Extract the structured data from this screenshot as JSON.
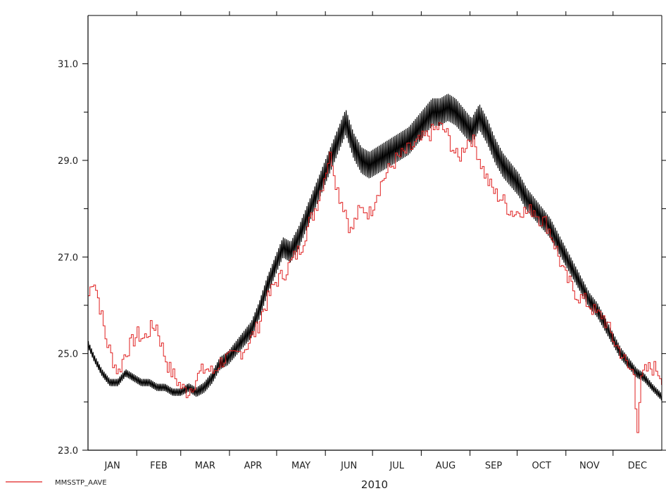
{
  "chart_data": {
    "type": "line",
    "title": "",
    "xlabel": "2010",
    "ylabel": "",
    "ylim": [
      23.0,
      32.0
    ],
    "y_tick_labels": [
      "23.0",
      "25.0",
      "27.0",
      "29.0",
      "31.0"
    ],
    "y_tick_values": [
      23,
      25,
      27,
      29,
      31
    ],
    "y_minor_tick_values": [
      24,
      26,
      28,
      30
    ],
    "months": [
      "JAN",
      "FEB",
      "MAR",
      "APR",
      "MAY",
      "JUN",
      "JUL",
      "AUG",
      "SEP",
      "OCT",
      "NOV",
      "DEC"
    ],
    "month_start_days": [
      1,
      32,
      60,
      91,
      121,
      152,
      182,
      213,
      244,
      274,
      305,
      335
    ],
    "xlim_days": [
      1,
      366
    ],
    "grid": false,
    "legend_placement": "bottom-left",
    "series": [
      {
        "name": "MMSSTP_AAVE",
        "color": "#e02020",
        "style": "stepped-noisy",
        "x_days": [
          1,
          4,
          8,
          12,
          16,
          20,
          24,
          28,
          32,
          36,
          40,
          44,
          48,
          52,
          56,
          60,
          64,
          68,
          72,
          76,
          80,
          84,
          88,
          92,
          96,
          100,
          104,
          108,
          112,
          116,
          120,
          124,
          128,
          132,
          136,
          140,
          144,
          148,
          152,
          154,
          156,
          158,
          160,
          164,
          168,
          172,
          176,
          180,
          184,
          188,
          192,
          196,
          200,
          204,
          208,
          212,
          216,
          220,
          224,
          228,
          232,
          236,
          240,
          244,
          248,
          252,
          256,
          260,
          264,
          268,
          272,
          276,
          280,
          284,
          288,
          292,
          296,
          300,
          304,
          308,
          312,
          316,
          320,
          324,
          328,
          332,
          336,
          340,
          344,
          348,
          350,
          352,
          354,
          358,
          362,
          366
        ],
        "y": [
          26.2,
          26.6,
          26.0,
          25.3,
          24.9,
          24.6,
          25.0,
          25.2,
          25.4,
          25.3,
          25.5,
          25.6,
          25.1,
          24.7,
          24.5,
          24.3,
          24.2,
          24.4,
          24.6,
          24.7,
          24.6,
          24.8,
          24.9,
          24.9,
          25.0,
          25.1,
          25.3,
          25.5,
          25.9,
          26.2,
          26.5,
          26.6,
          26.8,
          27.0,
          27.2,
          27.6,
          27.9,
          28.3,
          28.8,
          29.1,
          29.0,
          28.6,
          28.3,
          28.0,
          27.5,
          27.9,
          28.0,
          27.9,
          28.3,
          28.6,
          28.8,
          29.0,
          29.1,
          29.2,
          29.3,
          29.4,
          29.5,
          29.6,
          29.7,
          29.6,
          29.3,
          29.0,
          29.3,
          29.5,
          29.2,
          28.8,
          28.5,
          28.3,
          28.2,
          28.0,
          27.9,
          28.0,
          27.9,
          28.0,
          27.8,
          27.7,
          27.4,
          27.0,
          26.6,
          26.4,
          26.2,
          26.1,
          26.0,
          25.8,
          25.8,
          25.5,
          25.2,
          25.0,
          24.7,
          24.6,
          23.4,
          24.3,
          24.6,
          24.7,
          24.7,
          24.5
        ]
      },
      {
        "name": "",
        "color": "#000000",
        "style": "oscillating-band",
        "x_days": [
          1,
          5,
          10,
          15,
          20,
          25,
          30,
          35,
          40,
          45,
          50,
          55,
          60,
          65,
          70,
          75,
          80,
          85,
          90,
          95,
          100,
          105,
          110,
          115,
          120,
          125,
          130,
          135,
          140,
          145,
          150,
          155,
          160,
          165,
          170,
          175,
          180,
          185,
          190,
          195,
          200,
          205,
          210,
          215,
          220,
          225,
          230,
          235,
          240,
          245,
          250,
          255,
          260,
          265,
          270,
          275,
          280,
          285,
          290,
          295,
          300,
          305,
          310,
          315,
          320,
          325,
          330,
          335,
          340,
          345,
          350,
          355,
          360,
          366
        ],
        "y": [
          25.2,
          24.9,
          24.6,
          24.4,
          24.4,
          24.6,
          24.5,
          24.4,
          24.4,
          24.3,
          24.3,
          24.2,
          24.2,
          24.3,
          24.2,
          24.3,
          24.5,
          24.8,
          24.9,
          25.1,
          25.3,
          25.5,
          25.9,
          26.4,
          26.8,
          27.2,
          27.1,
          27.4,
          27.8,
          28.2,
          28.6,
          29.0,
          29.4,
          29.8,
          29.3,
          29.0,
          28.9,
          29.0,
          29.1,
          29.2,
          29.3,
          29.4,
          29.6,
          29.8,
          30.0,
          30.0,
          30.1,
          30.0,
          29.8,
          29.6,
          29.9,
          29.6,
          29.2,
          28.9,
          28.7,
          28.5,
          28.2,
          28.0,
          27.8,
          27.6,
          27.3,
          27.0,
          26.7,
          26.4,
          26.1,
          25.9,
          25.6,
          25.3,
          25.0,
          24.8,
          24.6,
          24.5,
          24.3,
          24.1
        ]
      }
    ]
  }
}
